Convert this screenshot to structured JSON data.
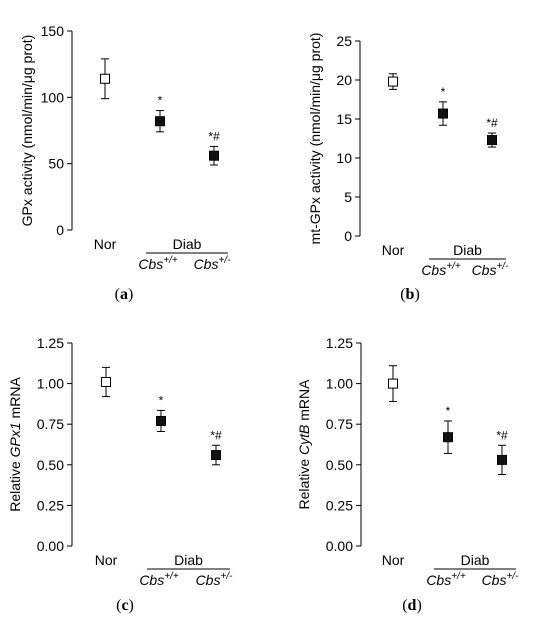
{
  "chart_data": [
    {
      "type": "scatter",
      "panel_label": "a",
      "ylabel": "GPx activity (nmol/min/μg prot)",
      "ylabel_parts": [
        {
          "t": "GPx activity (nmol/min/μg prot)",
          "i": false
        }
      ],
      "ylim": [
        0,
        150
      ],
      "yticks": [
        0,
        50,
        100,
        150
      ],
      "ytick_labels": [
        "0",
        "50",
        "100",
        "150"
      ],
      "group_label": "Diab",
      "categories": [
        "Nor",
        "Cbs+/+",
        "Cbs+/-"
      ],
      "cat_base": [
        "Nor",
        "Cbs",
        "Cbs"
      ],
      "cat_sup": [
        "",
        "+/+",
        "+/-"
      ],
      "values": [
        114,
        82,
        56
      ],
      "errors": [
        15,
        8,
        7
      ],
      "markers": [
        "open",
        "filled",
        "filled"
      ],
      "annotations": [
        "",
        "*",
        "*#"
      ]
    },
    {
      "type": "scatter",
      "panel_label": "b",
      "ylabel": "mt-GPx activity (nmol/min/μg prot)",
      "ylabel_parts": [
        {
          "t": "mt-GPx activity (nmol/min/μg prot)",
          "i": false
        }
      ],
      "ylim": [
        0,
        25
      ],
      "yticks": [
        0,
        5,
        10,
        15,
        20,
        25
      ],
      "ytick_labels": [
        "0",
        "5",
        "10",
        "15",
        "20",
        "25"
      ],
      "group_label": "Diab",
      "categories": [
        "Nor",
        "Cbs+/+",
        "Cbs+/-"
      ],
      "cat_base": [
        "Nor",
        "Cbs",
        "Cbs"
      ],
      "cat_sup": [
        "",
        "+/+",
        "+/-"
      ],
      "values": [
        19.8,
        15.7,
        12.3
      ],
      "errors": [
        1.0,
        1.5,
        0.9
      ],
      "markers": [
        "open",
        "filled",
        "filled"
      ],
      "annotations": [
        "",
        "*",
        "*#"
      ]
    },
    {
      "type": "scatter",
      "panel_label": "c",
      "ylabel": "Relative GPx1 mRNA",
      "ylabel_parts": [
        {
          "t": "Relative ",
          "i": false
        },
        {
          "t": "GPx1",
          "i": true
        },
        {
          "t": " mRNA",
          "i": false
        }
      ],
      "ylim": [
        0,
        1.25
      ],
      "yticks": [
        0,
        0.25,
        0.5,
        0.75,
        1.0,
        1.25
      ],
      "ytick_labels": [
        "0.00",
        "0.25",
        "0.50",
        "0.75",
        "1.00",
        "1.25"
      ],
      "group_label": "Diab",
      "categories": [
        "Nor",
        "Cbs+/+",
        "Cbs+/-"
      ],
      "cat_base": [
        "Nor",
        "Cbs",
        "Cbs"
      ],
      "cat_sup": [
        "",
        "+/+",
        "+/-"
      ],
      "values": [
        1.01,
        0.77,
        0.56
      ],
      "errors": [
        0.09,
        0.065,
        0.06
      ],
      "markers": [
        "open",
        "filled",
        "filled"
      ],
      "annotations": [
        "",
        "*",
        "*#"
      ]
    },
    {
      "type": "scatter",
      "panel_label": "d",
      "ylabel": "Relative CytB mRNA",
      "ylabel_parts": [
        {
          "t": "Relative ",
          "i": false
        },
        {
          "t": "CytB",
          "i": true
        },
        {
          "t": " mRNA",
          "i": false
        }
      ],
      "ylim": [
        0,
        1.25
      ],
      "yticks": [
        0,
        0.25,
        0.5,
        0.75,
        1.0,
        1.25
      ],
      "ytick_labels": [
        "0.00",
        "0.25",
        "0.50",
        "0.75",
        "1.00",
        "1.25"
      ],
      "group_label": "Diab",
      "categories": [
        "Nor",
        "Cbs+/+",
        "Cbs+/-"
      ],
      "cat_base": [
        "Nor",
        "Cbs",
        "Cbs"
      ],
      "cat_sup": [
        "",
        "+/+",
        "+/-"
      ],
      "values": [
        1.0,
        0.67,
        0.53
      ],
      "errors": [
        0.11,
        0.1,
        0.09
      ],
      "markers": [
        "open",
        "filled",
        "filled"
      ],
      "annotations": [
        "",
        "*",
        "*#"
      ]
    }
  ]
}
